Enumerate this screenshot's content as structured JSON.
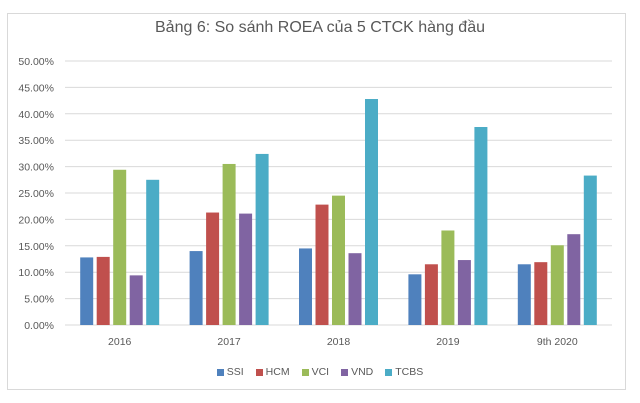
{
  "chart_data": {
    "type": "bar",
    "title": "Bảng 6: So sánh ROEA của 5 CTCK hàng đầu",
    "xlabel": "",
    "ylabel": "",
    "categories": [
      "2016",
      "2017",
      "2018",
      "2019",
      "9th 2020"
    ],
    "ylim": [
      0,
      50
    ],
    "yticks": [
      "0.00%",
      "5.00%",
      "10.00%",
      "15.00%",
      "20.00%",
      "25.00%",
      "30.00%",
      "35.00%",
      "40.00%",
      "45.00%",
      "50.00%"
    ],
    "grid": true,
    "legend_position": "bottom",
    "series": [
      {
        "name": "SSI",
        "color": "#4f81bd",
        "values": [
          12.8,
          14.0,
          14.5,
          9.6,
          11.5
        ]
      },
      {
        "name": "HCM",
        "color": "#c0504d",
        "values": [
          12.9,
          21.3,
          22.8,
          11.5,
          11.9
        ]
      },
      {
        "name": "VCI",
        "color": "#9bbb59",
        "values": [
          29.4,
          30.5,
          24.5,
          17.9,
          15.1
        ]
      },
      {
        "name": "VND",
        "color": "#8064a2",
        "values": [
          9.4,
          21.1,
          13.6,
          12.3,
          17.2
        ]
      },
      {
        "name": "TCBS",
        "color": "#4bacc6",
        "values": [
          27.5,
          32.4,
          42.8,
          37.5,
          28.3
        ]
      }
    ]
  }
}
